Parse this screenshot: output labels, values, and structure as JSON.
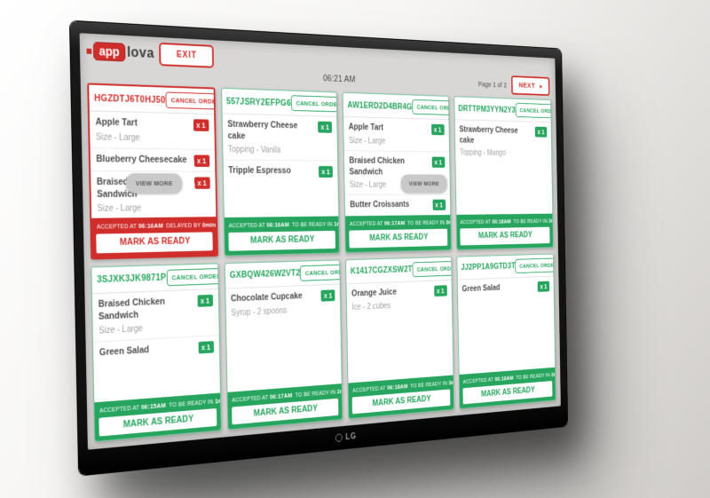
{
  "tv": {
    "brand": "LG"
  },
  "app": {
    "logo_app": "app",
    "logo_lova": "lova",
    "exit_label": "EXIT",
    "time": "06:21 AM",
    "page_label": "Page 1 of 2",
    "next_label": "NEXT",
    "next_arrow": "▸"
  },
  "labels": {
    "cancel": "CANCEL ORDER",
    "ready": "MARK AS READY",
    "view_more": "VIEW MORE",
    "accepted": "ACCEPTED AT"
  },
  "colors": {
    "red": "#cf2e2b",
    "green": "#27a55e"
  },
  "orders": [
    {
      "id": "HGZDTJ6T0HJ50",
      "state": "delayed",
      "accepted_at": "06:16AM",
      "status_label": "DELAYED BY",
      "status_value": "0mins",
      "items": [
        {
          "name": "Apple Tart",
          "modifier": "Size - Large",
          "qty": "x 1"
        },
        {
          "name": "Blueberry Cheesecake",
          "modifier": "",
          "qty": "x 1"
        },
        {
          "name": "Braised Chicken Sandwich",
          "modifier": "Size - Large",
          "qty": "x 1"
        }
      ]
    },
    {
      "id": "557JSRY2EFPG6",
      "state": "on-time",
      "accepted_at": "06:16AM",
      "status_label": "TO BE READY IN",
      "status_value": "1min",
      "items": [
        {
          "name": "Strawberry Cheese cake",
          "modifier": "Topping - Vanila",
          "qty": "x 1"
        },
        {
          "name": "Tripple Espresso",
          "modifier": "",
          "qty": "x 1"
        }
      ]
    },
    {
      "id": "AW1ERD2D4BR4G",
      "state": "on-time",
      "accepted_at": "06:17AM",
      "status_label": "TO BE READY IN",
      "status_value": "3min",
      "items": [
        {
          "name": "Apple Tart",
          "modifier": "Size - Large",
          "qty": "x 1"
        },
        {
          "name": "Braised Chicken Sandwich",
          "modifier": "Size - Large",
          "qty": "x 1"
        },
        {
          "name": "Butter Croissants",
          "modifier": "",
          "qty": "x 1"
        }
      ]
    },
    {
      "id": "DRTTPM3YYN2Y3",
      "state": "on-time",
      "accepted_at": "06:18AM",
      "status_label": "TO BE READY IN",
      "status_value": "3min",
      "items": [
        {
          "name": "Strawberry Cheese cake",
          "modifier": "Topping - Mango",
          "qty": "x 1"
        }
      ]
    },
    {
      "id": "3SJXK3JK9871P",
      "state": "on-time",
      "accepted_at": "06:15AM",
      "status_label": "TO BE READY IN",
      "status_value": "1min",
      "items": [
        {
          "name": "Braised Chicken Sandwich",
          "modifier": "Size - Large",
          "qty": "x 1"
        },
        {
          "name": "Green Salad",
          "modifier": "",
          "qty": "x 1"
        }
      ]
    },
    {
      "id": "GXBQW426W2VT2",
      "state": "on-time",
      "accepted_at": "06:17AM",
      "status_label": "TO BE READY IN",
      "status_value": "2min",
      "items": [
        {
          "name": "Chocolate Cupcake",
          "modifier": "Syrup - 2 spoons",
          "qty": "x 1"
        }
      ]
    },
    {
      "id": "K1417CGZXSW2T",
      "state": "on-time",
      "accepted_at": "06:18AM",
      "status_label": "TO BE READY IN",
      "status_value": "3min",
      "items": [
        {
          "name": "Orange Juice",
          "modifier": "Ice - 2 cubes",
          "qty": "x 1"
        }
      ]
    },
    {
      "id": "JJ2PP1A9GTD3T",
      "state": "on-time",
      "accepted_at": "06:18AM",
      "status_label": "TO BE READY IN",
      "status_value": "3min",
      "items": [
        {
          "name": "Green Salad",
          "modifier": "",
          "qty": "x 1"
        }
      ]
    }
  ]
}
